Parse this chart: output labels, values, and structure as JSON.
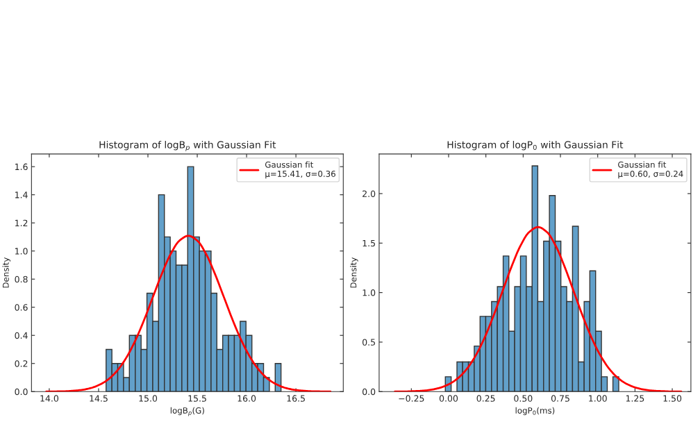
{
  "chart_data": [
    {
      "type": "histogram",
      "title": "Histogram of logB$_{p}$ with Gaussian Fit",
      "xlabel": "logB$_{p}$(G)",
      "ylabel": "Density",
      "color": "#62a0ca",
      "legend": "top right",
      "bins": [
        14.576,
        14.635,
        14.694,
        14.753,
        14.812,
        14.872,
        14.931,
        14.99,
        15.049,
        15.108,
        15.167,
        15.226,
        15.285,
        15.344,
        15.403,
        15.463,
        15.522,
        15.581,
        15.64,
        15.699,
        15.758,
        15.817,
        15.876,
        15.935,
        15.994,
        16.054,
        16.113,
        16.172,
        16.231,
        16.29,
        16.349
      ],
      "values": [
        0.3,
        0.2,
        0.2,
        0.1,
        0.4,
        0.4,
        0.3,
        0.7,
        0.5,
        1.4,
        1.1,
        1.0,
        0.9,
        0.9,
        1.6,
        1.1,
        1.0,
        1.0,
        0.7,
        0.3,
        0.4,
        0.4,
        0.4,
        0.5,
        0.4,
        0.2,
        0.2,
        0.1,
        0.0,
        0.2
      ],
      "series": [
        {
          "type": "line",
          "name": "Gaussian fit\nμ=15.41, σ=0.36",
          "color": "#ff0000",
          "x": [
            13.97,
            14.06,
            14.15,
            14.24,
            14.33,
            14.42,
            14.51,
            14.6,
            14.69,
            14.78,
            14.87,
            14.96,
            15.05,
            15.14,
            15.23,
            15.32,
            15.41,
            15.5,
            15.59,
            15.68,
            15.77,
            15.86,
            15.95,
            16.04,
            16.13,
            16.22,
            16.31,
            16.4,
            16.49,
            16.58,
            16.67,
            16.76,
            16.85
          ],
          "values": [
            0.0,
            0.001,
            0.002,
            0.006,
            0.012,
            0.025,
            0.049,
            0.088,
            0.15,
            0.24,
            0.36,
            0.507,
            0.672,
            0.836,
            0.978,
            1.074,
            1.108,
            1.074,
            0.978,
            0.836,
            0.672,
            0.507,
            0.36,
            0.24,
            0.15,
            0.088,
            0.049,
            0.025,
            0.012,
            0.006,
            0.002,
            0.001,
            0.0
          ]
        }
      ],
      "xlim": [
        13.82,
        16.98
      ],
      "ylim": [
        0,
        1.69
      ],
      "xticks": [
        {
          "value": 14,
          "label": "14.0"
        },
        14.5,
        {
          "value": 15,
          "label": "15.0"
        },
        15.5,
        {
          "value": 16,
          "label": "16.0"
        },
        16.5
      ],
      "yticks": [
        {
          "value": 0,
          "label": "0.0"
        },
        0.2,
        0.4,
        0.6,
        0.8,
        {
          "value": 1,
          "label": "1.0"
        },
        1.2,
        1.4,
        1.6
      ]
    },
    {
      "type": "histogram",
      "title": "Histogram of logP$_{0}$ with Gaussian Fit",
      "xlabel": "logP$_{0}$(ms)",
      "ylabel": "Density",
      "color": "#62a0ca",
      "legend": "top right",
      "bins": [
        -0.022,
        0.017,
        0.056,
        0.094,
        0.133,
        0.172,
        0.211,
        0.249,
        0.288,
        0.327,
        0.366,
        0.404,
        0.443,
        0.482,
        0.521,
        0.56,
        0.598,
        0.637,
        0.676,
        0.715,
        0.753,
        0.792,
        0.831,
        0.87,
        0.909,
        0.947,
        0.986,
        1.025,
        1.064,
        1.102,
        1.141
      ],
      "values": [
        0.15,
        0.0,
        0.3,
        0.3,
        0.3,
        0.46,
        0.76,
        0.76,
        0.91,
        1.06,
        1.37,
        0.61,
        1.06,
        1.37,
        1.06,
        2.28,
        0.91,
        1.52,
        1.98,
        1.52,
        1.06,
        0.91,
        1.67,
        0.3,
        0.91,
        1.22,
        0.61,
        0.15,
        0.0,
        0.15
      ],
      "series": [
        {
          "type": "line",
          "name": "Gaussian fit\nμ=0.60, σ=0.24",
          "color": "#ff0000",
          "x": [
            -0.36,
            -0.3,
            -0.24,
            -0.18,
            -0.12,
            -0.06,
            0.0,
            0.06,
            0.12,
            0.18,
            0.24,
            0.3,
            0.36,
            0.42,
            0.48,
            0.54,
            0.6,
            0.66,
            0.72,
            0.78,
            0.84,
            0.9,
            0.96,
            1.02,
            1.08,
            1.14,
            1.2,
            1.26,
            1.32,
            1.38,
            1.44,
            1.5,
            1.56
          ],
          "values": [
            0.001,
            0.001,
            0.004,
            0.008,
            0.018,
            0.038,
            0.073,
            0.132,
            0.225,
            0.36,
            0.54,
            0.761,
            1.008,
            1.254,
            1.467,
            1.611,
            1.662,
            1.611,
            1.467,
            1.254,
            1.008,
            0.761,
            0.54,
            0.36,
            0.225,
            0.132,
            0.073,
            0.038,
            0.018,
            0.008,
            0.004,
            0.001,
            0.001
          ]
        }
      ],
      "xlim": [
        -0.466,
        1.625
      ],
      "ylim": [
        0,
        2.4
      ],
      "xticks": [
        {
          "value": -0.25,
          "label": "−0.25"
        },
        {
          "value": 0.0,
          "label": "0.00"
        },
        {
          "value": 0.25,
          "label": "0.25"
        },
        {
          "value": 0.5,
          "label": "0.50"
        },
        {
          "value": 0.75,
          "label": "0.75"
        },
        {
          "value": 1.0,
          "label": "1.00"
        },
        {
          "value": 1.25,
          "label": "1.25"
        },
        {
          "value": 1.5,
          "label": "1.50"
        }
      ],
      "yticks": [
        {
          "value": 0,
          "label": "0.0"
        },
        0.5,
        {
          "value": 1,
          "label": "1.0"
        },
        1.5,
        {
          "value": 2,
          "label": "2.0"
        }
      ]
    }
  ]
}
